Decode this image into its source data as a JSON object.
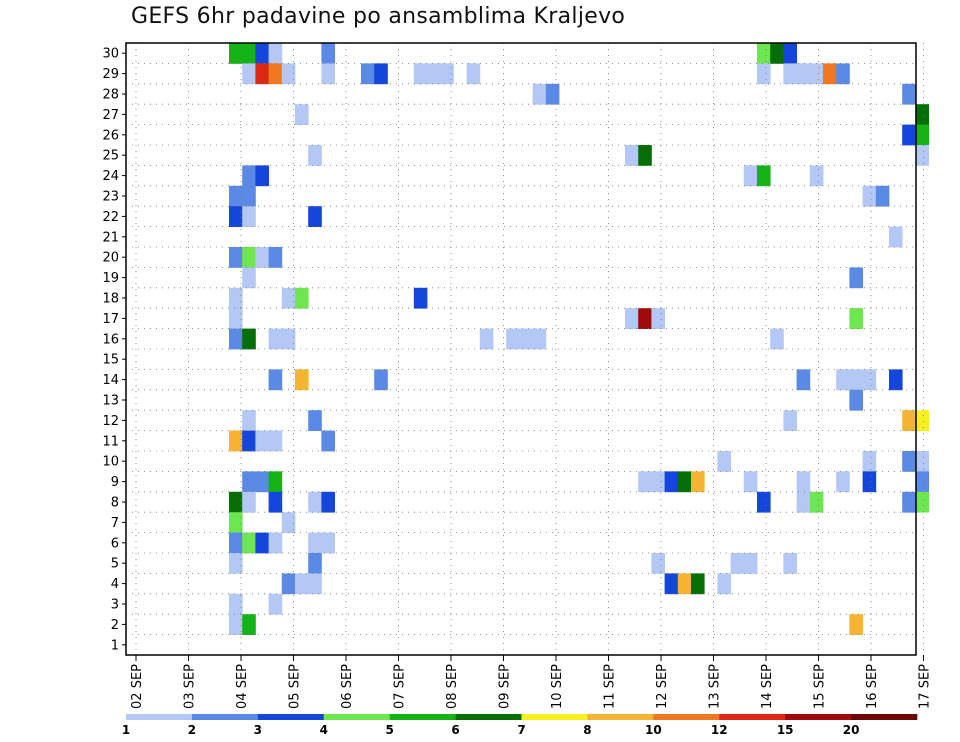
{
  "chart_data": {
    "type": "heatmap",
    "title": "GEFS 6hr padavine po ansamblima Kraljevo",
    "xlabel": "",
    "ylabel": "",
    "y_categories": [
      "1",
      "2",
      "3",
      "4",
      "5",
      "6",
      "7",
      "8",
      "9",
      "10",
      "11",
      "12",
      "13",
      "14",
      "15",
      "16",
      "17",
      "18",
      "19",
      "20",
      "21",
      "22",
      "23",
      "24",
      "25",
      "26",
      "27",
      "28",
      "29",
      "30"
    ],
    "x_tick_labels": [
      "02 SEP",
      "03 SEP",
      "04 SEP",
      "05 SEP",
      "06 SEP",
      "07 SEP",
      "08 SEP",
      "09 SEP",
      "10 SEP",
      "11 SEP",
      "12 SEP",
      "13 SEP",
      "14 SEP",
      "15 SEP",
      "16 SEP",
      "17 SEP"
    ],
    "colorbar": {
      "labels": [
        "1",
        "2",
        "3",
        "4",
        "5",
        "6",
        "7",
        "8",
        "10",
        "12",
        "15",
        "20"
      ],
      "colors": [
        "#b4c8f5",
        "#5a8ae6",
        "#1446dc",
        "#6ee650",
        "#14b414",
        "#056e05",
        "#f5f01e",
        "#f5b432",
        "#f0781e",
        "#dc2814",
        "#a00a0a",
        "#6e0505"
      ]
    },
    "cells": [
      {
        "member": 30,
        "step": 0,
        "level": 5
      },
      {
        "member": 30,
        "step": 1,
        "level": 5
      },
      {
        "member": 30,
        "step": 2,
        "level": 3
      },
      {
        "member": 30,
        "step": 3,
        "level": 1
      },
      {
        "member": 30,
        "step": 7,
        "level": 2
      },
      {
        "member": 30,
        "step": 40,
        "level": 4
      },
      {
        "member": 30,
        "step": 41,
        "level": 6
      },
      {
        "member": 30,
        "step": 42,
        "level": 3
      },
      {
        "member": 29,
        "step": 1,
        "level": 1
      },
      {
        "member": 29,
        "step": 2,
        "level": 10
      },
      {
        "member": 29,
        "step": 3,
        "level": 9
      },
      {
        "member": 29,
        "step": 4,
        "level": 1
      },
      {
        "member": 29,
        "step": 7,
        "level": 1
      },
      {
        "member": 29,
        "step": 10,
        "level": 2
      },
      {
        "member": 29,
        "step": 11,
        "level": 3
      },
      {
        "member": 29,
        "step": 14,
        "level": 1
      },
      {
        "member": 29,
        "step": 15,
        "level": 1
      },
      {
        "member": 29,
        "step": 16,
        "level": 1
      },
      {
        "member": 29,
        "step": 18,
        "level": 1
      },
      {
        "member": 29,
        "step": 40,
        "level": 1
      },
      {
        "member": 29,
        "step": 42,
        "level": 1
      },
      {
        "member": 29,
        "step": 43,
        "level": 1
      },
      {
        "member": 29,
        "step": 44,
        "level": 1
      },
      {
        "member": 29,
        "step": 45,
        "level": 9
      },
      {
        "member": 29,
        "step": 46,
        "level": 2
      },
      {
        "member": 28,
        "step": 23,
        "level": 1
      },
      {
        "member": 28,
        "step": 24,
        "level": 2
      },
      {
        "member": 28,
        "step": 51,
        "level": 2
      },
      {
        "member": 27,
        "step": 5,
        "level": 1
      },
      {
        "member": 27,
        "step": 52,
        "level": 6
      },
      {
        "member": 26,
        "step": 51,
        "level": 3
      },
      {
        "member": 26,
        "step": 52,
        "level": 5
      },
      {
        "member": 25,
        "step": 6,
        "level": 1
      },
      {
        "member": 25,
        "step": 30,
        "level": 1
      },
      {
        "member": 25,
        "step": 31,
        "level": 6
      },
      {
        "member": 25,
        "step": 52,
        "level": 1
      },
      {
        "member": 24,
        "step": 1,
        "level": 2
      },
      {
        "member": 24,
        "step": 2,
        "level": 3
      },
      {
        "member": 24,
        "step": 39,
        "level": 1
      },
      {
        "member": 24,
        "step": 40,
        "level": 5
      },
      {
        "member": 24,
        "step": 44,
        "level": 1
      },
      {
        "member": 23,
        "step": 0,
        "level": 2
      },
      {
        "member": 23,
        "step": 1,
        "level": 2
      },
      {
        "member": 23,
        "step": 48,
        "level": 1
      },
      {
        "member": 23,
        "step": 49,
        "level": 2
      },
      {
        "member": 22,
        "step": 0,
        "level": 3
      },
      {
        "member": 22,
        "step": 1,
        "level": 1
      },
      {
        "member": 22,
        "step": 6,
        "level": 3
      },
      {
        "member": 21,
        "step": 50,
        "level": 1
      },
      {
        "member": 20,
        "step": 0,
        "level": 2
      },
      {
        "member": 20,
        "step": 1,
        "level": 4
      },
      {
        "member": 20,
        "step": 2,
        "level": 1
      },
      {
        "member": 20,
        "step": 3,
        "level": 2
      },
      {
        "member": 19,
        "step": 1,
        "level": 1
      },
      {
        "member": 19,
        "step": 47,
        "level": 2
      },
      {
        "member": 18,
        "step": 0,
        "level": 1
      },
      {
        "member": 18,
        "step": 4,
        "level": 1
      },
      {
        "member": 18,
        "step": 5,
        "level": 4
      },
      {
        "member": 18,
        "step": 14,
        "level": 3
      },
      {
        "member": 17,
        "step": 0,
        "level": 1
      },
      {
        "member": 17,
        "step": 30,
        "level": 1
      },
      {
        "member": 17,
        "step": 31,
        "level": 11
      },
      {
        "member": 17,
        "step": 32,
        "level": 1
      },
      {
        "member": 17,
        "step": 47,
        "level": 4
      },
      {
        "member": 16,
        "step": 0,
        "level": 2
      },
      {
        "member": 16,
        "step": 1,
        "level": 6
      },
      {
        "member": 16,
        "step": 3,
        "level": 1
      },
      {
        "member": 16,
        "step": 4,
        "level": 1
      },
      {
        "member": 16,
        "step": 19,
        "level": 1
      },
      {
        "member": 16,
        "step": 21,
        "level": 1
      },
      {
        "member": 16,
        "step": 22,
        "level": 1
      },
      {
        "member": 16,
        "step": 23,
        "level": 1
      },
      {
        "member": 16,
        "step": 41,
        "level": 1
      },
      {
        "member": 14,
        "step": 3,
        "level": 2
      },
      {
        "member": 14,
        "step": 5,
        "level": 8
      },
      {
        "member": 14,
        "step": 11,
        "level": 2
      },
      {
        "member": 14,
        "step": 43,
        "level": 2
      },
      {
        "member": 14,
        "step": 46,
        "level": 1
      },
      {
        "member": 14,
        "step": 47,
        "level": 1
      },
      {
        "member": 14,
        "step": 48,
        "level": 1
      },
      {
        "member": 14,
        "step": 50,
        "level": 3
      },
      {
        "member": 13,
        "step": 47,
        "level": 2
      },
      {
        "member": 12,
        "step": 1,
        "level": 1
      },
      {
        "member": 12,
        "step": 6,
        "level": 2
      },
      {
        "member": 12,
        "step": 42,
        "level": 1
      },
      {
        "member": 12,
        "step": 51,
        "level": 8
      },
      {
        "member": 12,
        "step": 52,
        "level": 7
      },
      {
        "member": 11,
        "step": 0,
        "level": 8
      },
      {
        "member": 11,
        "step": 1,
        "level": 3
      },
      {
        "member": 11,
        "step": 2,
        "level": 1
      },
      {
        "member": 11,
        "step": 3,
        "level": 1
      },
      {
        "member": 11,
        "step": 7,
        "level": 2
      },
      {
        "member": 10,
        "step": 37,
        "level": 1
      },
      {
        "member": 10,
        "step": 48,
        "level": 1
      },
      {
        "member": 10,
        "step": 51,
        "level": 2
      },
      {
        "member": 10,
        "step": 52,
        "level": 1
      },
      {
        "member": 9,
        "step": 1,
        "level": 2
      },
      {
        "member": 9,
        "step": 2,
        "level": 2
      },
      {
        "member": 9,
        "step": 3,
        "level": 5
      },
      {
        "member": 9,
        "step": 31,
        "level": 1
      },
      {
        "member": 9,
        "step": 32,
        "level": 1
      },
      {
        "member": 9,
        "step": 33,
        "level": 3
      },
      {
        "member": 9,
        "step": 34,
        "level": 6
      },
      {
        "member": 9,
        "step": 35,
        "level": 8
      },
      {
        "member": 9,
        "step": 39,
        "level": 1
      },
      {
        "member": 9,
        "step": 43,
        "level": 1
      },
      {
        "member": 9,
        "step": 46,
        "level": 1
      },
      {
        "member": 9,
        "step": 48,
        "level": 3
      },
      {
        "member": 9,
        "step": 52,
        "level": 2
      },
      {
        "member": 8,
        "step": 0,
        "level": 6
      },
      {
        "member": 8,
        "step": 1,
        "level": 1
      },
      {
        "member": 8,
        "step": 3,
        "level": 3
      },
      {
        "member": 8,
        "step": 6,
        "level": 1
      },
      {
        "member": 8,
        "step": 7,
        "level": 3
      },
      {
        "member": 8,
        "step": 40,
        "level": 3
      },
      {
        "member": 8,
        "step": 43,
        "level": 1
      },
      {
        "member": 8,
        "step": 44,
        "level": 4
      },
      {
        "member": 8,
        "step": 51,
        "level": 2
      },
      {
        "member": 8,
        "step": 52,
        "level": 4
      },
      {
        "member": 7,
        "step": 0,
        "level": 4
      },
      {
        "member": 7,
        "step": 4,
        "level": 1
      },
      {
        "member": 6,
        "step": 0,
        "level": 2
      },
      {
        "member": 6,
        "step": 1,
        "level": 4
      },
      {
        "member": 6,
        "step": 2,
        "level": 3
      },
      {
        "member": 6,
        "step": 3,
        "level": 1
      },
      {
        "member": 6,
        "step": 6,
        "level": 1
      },
      {
        "member": 6,
        "step": 7,
        "level": 1
      },
      {
        "member": 5,
        "step": 0,
        "level": 1
      },
      {
        "member": 5,
        "step": 6,
        "level": 2
      },
      {
        "member": 5,
        "step": 32,
        "level": 1
      },
      {
        "member": 5,
        "step": 38,
        "level": 1
      },
      {
        "member": 5,
        "step": 39,
        "level": 1
      },
      {
        "member": 5,
        "step": 42,
        "level": 1
      },
      {
        "member": 4,
        "step": 4,
        "level": 2
      },
      {
        "member": 4,
        "step": 5,
        "level": 1
      },
      {
        "member": 4,
        "step": 6,
        "level": 1
      },
      {
        "member": 4,
        "step": 33,
        "level": 3
      },
      {
        "member": 4,
        "step": 34,
        "level": 8
      },
      {
        "member": 4,
        "step": 35,
        "level": 6
      },
      {
        "member": 4,
        "step": 37,
        "level": 1
      },
      {
        "member": 3,
        "step": 0,
        "level": 1
      },
      {
        "member": 3,
        "step": 3,
        "level": 1
      },
      {
        "member": 2,
        "step": 0,
        "level": 1
      },
      {
        "member": 2,
        "step": 1,
        "level": 5
      },
      {
        "member": 2,
        "step": 47,
        "level": 8
      }
    ]
  }
}
